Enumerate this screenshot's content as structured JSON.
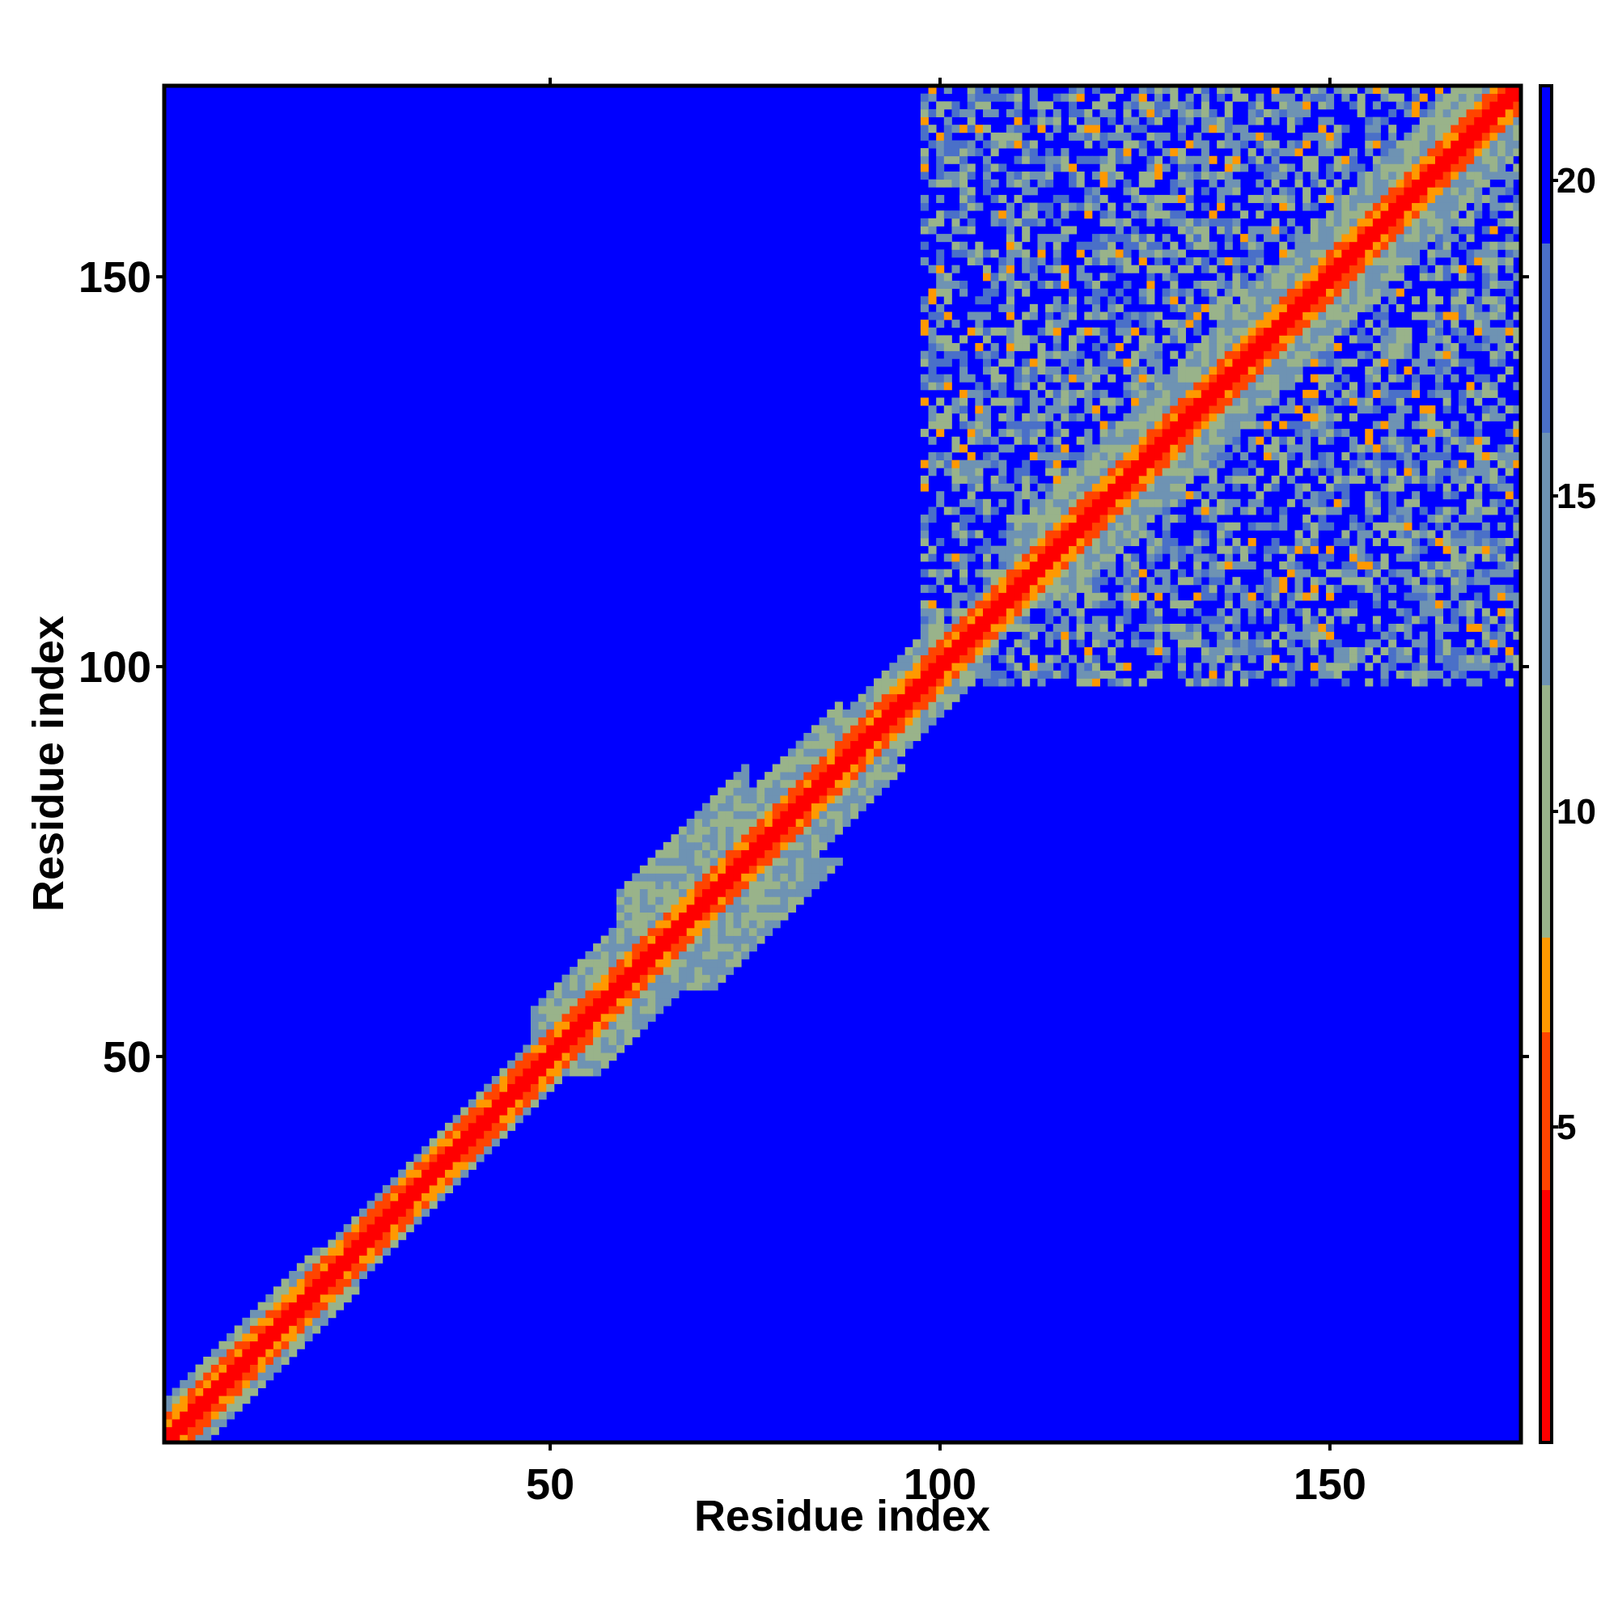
{
  "chart_data": {
    "type": "heatmap",
    "title": "",
    "xlabel": "Residue index",
    "ylabel": "Residue index",
    "n_residues": 174,
    "xlim": [
      0.5,
      174.5
    ],
    "ylim": [
      0.5,
      174.5
    ],
    "x_ticks": [
      50,
      100,
      150
    ],
    "y_ticks": [
      50,
      100,
      150
    ],
    "x_tick_labels": [
      "50",
      "100",
      "150"
    ],
    "y_tick_labels": [
      "50",
      "100",
      "150"
    ],
    "colorbar": {
      "range": [
        0,
        21.5
      ],
      "ticks": [
        5,
        10,
        15,
        20
      ],
      "tick_labels": [
        "5",
        "10",
        "15",
        "20"
      ],
      "colors": [
        {
          "max": 4.0,
          "color": "#ff0000"
        },
        {
          "max": 6.5,
          "color": "#ff4400"
        },
        {
          "max": 8.0,
          "color": "#ff9900"
        },
        {
          "max": 12.0,
          "color": "#99b38a"
        },
        {
          "max": 16.0,
          "color": "#6e93b3"
        },
        {
          "max": 19.0,
          "color": "#4a70c8"
        },
        {
          "max": 21.5,
          "color": "#0000ff"
        }
      ],
      "background_color": "#0000ff"
    },
    "structure": {
      "diagonal_value": 0,
      "band_regions": [
        {
          "from": 1,
          "to": 20,
          "width": 5
        },
        {
          "from": 20,
          "to": 47,
          "width": 4
        },
        {
          "from": 47,
          "to": 58,
          "width": 8
        },
        {
          "from": 58,
          "to": 75,
          "width": 12
        },
        {
          "from": 75,
          "to": 87,
          "width": 8
        },
        {
          "from": 87,
          "to": 100,
          "width": 6
        },
        {
          "from": 100,
          "to": 108,
          "width": 4
        },
        {
          "from": 108,
          "to": 174,
          "width": 8
        }
      ],
      "contact_domain": {
        "from": 98,
        "to": 174,
        "fill": 0.55
      }
    }
  }
}
